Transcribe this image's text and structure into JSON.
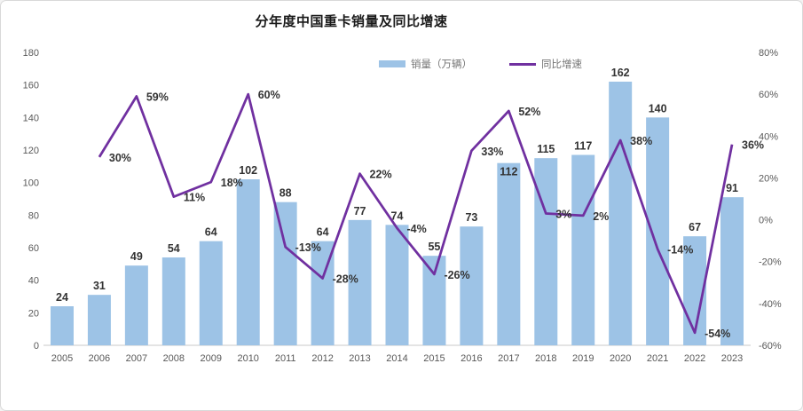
{
  "chart_data": {
    "type": "bar+line",
    "title": "分年度中国重卡销量及同比增速",
    "categories": [
      "2005",
      "2006",
      "2007",
      "2008",
      "2009",
      "2010",
      "2011",
      "2012",
      "2013",
      "2014",
      "2015",
      "2016",
      "2017",
      "2018",
      "2019",
      "2020",
      "2021",
      "2022",
      "2023"
    ],
    "series": [
      {
        "name": "销量（万辆）",
        "type": "bar",
        "axis": "left",
        "color": "#9DC3E6",
        "values": [
          24,
          31,
          49,
          54,
          64,
          102,
          88,
          64,
          77,
          74,
          55,
          73,
          112,
          115,
          117,
          162,
          140,
          67,
          91
        ],
        "inside_label_indices": [
          12
        ]
      },
      {
        "name": "同比增速",
        "type": "line",
        "axis": "right",
        "color": "#7030A0",
        "unit": "%",
        "values": [
          null,
          30,
          59,
          11,
          18,
          60,
          -13,
          -28,
          22,
          -4,
          -26,
          33,
          52,
          3,
          2,
          38,
          -14,
          -54,
          36
        ]
      }
    ],
    "left_axis": {
      "min": 0,
      "max": 180,
      "step": 20
    },
    "right_axis": {
      "min": -60,
      "max": 80,
      "step": 20,
      "suffix": "%"
    },
    "legend_position": "top",
    "grid": false
  }
}
